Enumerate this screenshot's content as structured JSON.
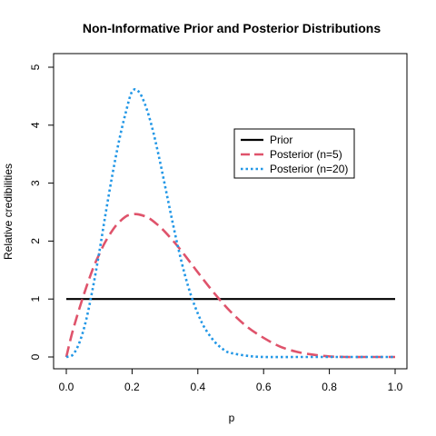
{
  "chart_data": {
    "type": "line",
    "title": "Non-Informative Prior and Posterior Distributions",
    "xlabel": "p",
    "ylabel": "Relative credibilities",
    "xlim": [
      0,
      1
    ],
    "ylim": [
      0,
      5
    ],
    "x_ticks": [
      "0.0",
      "0.2",
      "0.4",
      "0.6",
      "0.8",
      "1.0"
    ],
    "y_ticks": [
      "0",
      "1",
      "2",
      "3",
      "4",
      "5"
    ],
    "grid": false,
    "legend_position": "center-right",
    "series": [
      {
        "name": "Prior",
        "color": "#000000",
        "style": "solid",
        "x": [
          0.0,
          1.0
        ],
        "y": [
          1.0,
          1.0
        ]
      },
      {
        "name": "Posterior (n=5)",
        "color": "#DF536B",
        "style": "dashed",
        "x": [
          0.0,
          0.02,
          0.05,
          0.08,
          0.1,
          0.12,
          0.15,
          0.18,
          0.2,
          0.22,
          0.25,
          0.28,
          0.3,
          0.33,
          0.35,
          0.38,
          0.4,
          0.45,
          0.5,
          0.55,
          0.6,
          0.65,
          0.7,
          0.75,
          0.8,
          0.85,
          0.9,
          0.95,
          1.0
        ],
        "y": [
          0.0,
          0.46,
          1.02,
          1.51,
          1.77,
          2.0,
          2.26,
          2.42,
          2.46,
          2.46,
          2.4,
          2.27,
          2.16,
          1.97,
          1.83,
          1.61,
          1.46,
          1.1,
          0.78,
          0.52,
          0.33,
          0.18,
          0.09,
          0.04,
          0.01,
          0.0,
          0.0,
          0.0,
          0.0
        ]
      },
      {
        "name": "Posterior (n=20)",
        "color": "#2297E6",
        "style": "dotted",
        "x": [
          0.0,
          0.02,
          0.04,
          0.06,
          0.08,
          0.1,
          0.12,
          0.14,
          0.16,
          0.18,
          0.2,
          0.22,
          0.24,
          0.26,
          0.28,
          0.3,
          0.32,
          0.34,
          0.36,
          0.38,
          0.4,
          0.42,
          0.45,
          0.48,
          0.5,
          0.55,
          0.6,
          0.7,
          0.8,
          0.9,
          1.0
        ],
        "y": [
          0.0,
          0.04,
          0.25,
          0.63,
          1.17,
          1.8,
          2.49,
          3.14,
          3.72,
          4.2,
          4.58,
          4.58,
          4.35,
          3.98,
          3.5,
          2.96,
          2.41,
          1.89,
          1.43,
          1.05,
          0.75,
          0.51,
          0.27,
          0.12,
          0.07,
          0.02,
          0.0,
          0.0,
          0.0,
          0.0,
          0.0
        ]
      }
    ]
  }
}
